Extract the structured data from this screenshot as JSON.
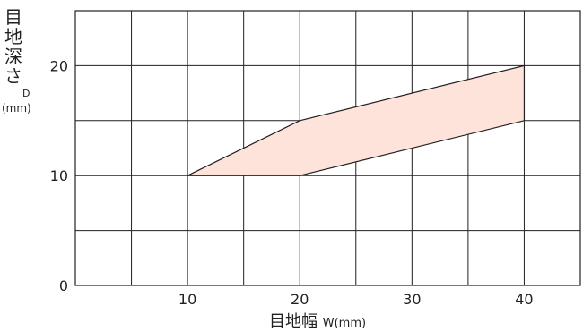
{
  "chart_data": {
    "type": "area",
    "title": "",
    "xlabel": {
      "text": "目地幅",
      "symbol": "W(mm)"
    },
    "ylabel": {
      "text": "目地深さ",
      "symbol": "D",
      "unit": "(mm)"
    },
    "xlim": [
      0,
      45
    ],
    "ylim": [
      0,
      25
    ],
    "x_ticks": [
      10,
      20,
      30,
      40
    ],
    "y_ticks": [
      0,
      10,
      20
    ],
    "grid": true,
    "grid_step": {
      "x": 5,
      "y": 5
    },
    "series": [
      {
        "upper": [
          {
            "x": 10,
            "y": 10
          },
          {
            "x": 20,
            "y": 15
          },
          {
            "x": 40,
            "y": 20
          }
        ],
        "lower": [
          {
            "x": 10,
            "y": 10
          },
          {
            "x": 20,
            "y": 10
          },
          {
            "x": 40,
            "y": 15
          }
        ]
      }
    ],
    "fill_color": "#fde3d9",
    "line_color": "#231f20"
  }
}
